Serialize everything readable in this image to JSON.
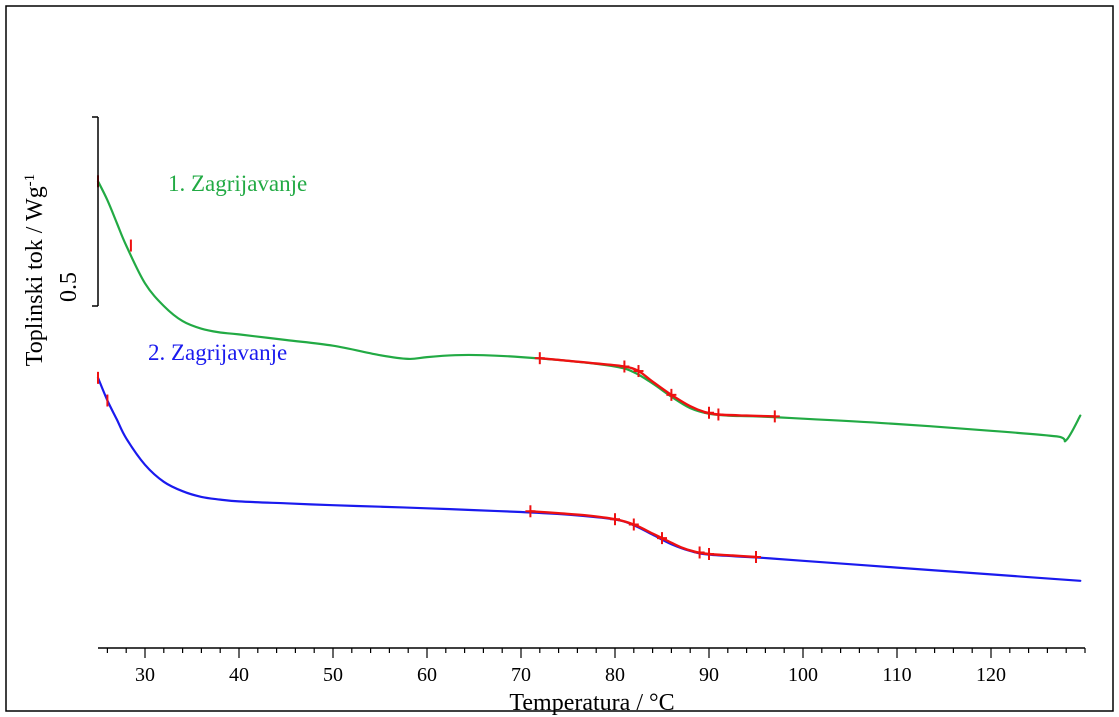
{
  "chart_data": {
    "type": "line",
    "xlabel": "Temperatura / °C",
    "ylabel_main": "Toplinski tok / Wg",
    "ylabel_sup": "-1",
    "xlim": [
      25,
      130
    ],
    "x_ticks": [
      30,
      40,
      50,
      60,
      70,
      80,
      90,
      100,
      110,
      120
    ],
    "scale_bar_label": "0.5",
    "scale_bar_value": 0.5,
    "grid": false,
    "series": [
      {
        "name": "1. Zagrijavanje",
        "color": "#22aa44",
        "x": [
          25.0,
          26,
          27,
          28,
          30,
          32,
          34,
          36,
          38,
          40,
          45,
          50,
          55,
          58,
          60,
          63,
          66,
          70,
          75,
          80,
          82,
          84,
          86,
          88,
          90,
          92,
          95,
          100,
          110,
          120,
          127,
          128,
          129.5
        ],
        "y": [
          1.24,
          1.19,
          1.13,
          1.07,
          0.97,
          0.91,
          0.87,
          0.85,
          0.84,
          0.835,
          0.82,
          0.805,
          0.78,
          0.77,
          0.775,
          0.78,
          0.78,
          0.775,
          0.765,
          0.75,
          0.735,
          0.705,
          0.67,
          0.64,
          0.625,
          0.62,
          0.618,
          0.612,
          0.598,
          0.58,
          0.565,
          0.555,
          0.62
        ]
      },
      {
        "name": "2. Zagrijavanje",
        "color": "#1a1aee",
        "x": [
          25.0,
          26,
          27,
          28,
          30,
          32,
          34,
          36,
          38,
          40,
          45,
          50,
          55,
          60,
          65,
          70,
          75,
          80,
          82,
          84,
          86,
          88,
          90,
          95,
          100,
          110,
          120,
          129.5
        ],
        "y": [
          0.72,
          0.66,
          0.61,
          0.56,
          0.49,
          0.445,
          0.42,
          0.405,
          0.398,
          0.393,
          0.388,
          0.383,
          0.379,
          0.375,
          0.37,
          0.365,
          0.358,
          0.345,
          0.33,
          0.305,
          0.28,
          0.262,
          0.252,
          0.245,
          0.236,
          0.218,
          0.2,
          0.183
        ]
      }
    ],
    "tg_overlays": [
      {
        "color": "#ee1111",
        "x": [
          72,
          75,
          78,
          81,
          82.5,
          84,
          86,
          88,
          89.5,
          91,
          94,
          97
        ],
        "y": [
          0.772,
          0.765,
          0.758,
          0.75,
          0.738,
          0.71,
          0.675,
          0.645,
          0.63,
          0.623,
          0.62,
          0.618
        ],
        "marks_x": [
          72,
          81,
          82.5,
          86,
          90,
          91,
          97
        ]
      },
      {
        "color": "#ee1111",
        "x": [
          71,
          74,
          77,
          80,
          82,
          84,
          85.5,
          87,
          88.5,
          90,
          92.5,
          95
        ],
        "y": [
          0.367,
          0.362,
          0.356,
          0.346,
          0.332,
          0.308,
          0.29,
          0.272,
          0.26,
          0.254,
          0.25,
          0.246
        ],
        "marks_x": [
          71,
          80,
          82,
          85,
          89,
          90,
          95
        ]
      }
    ]
  }
}
